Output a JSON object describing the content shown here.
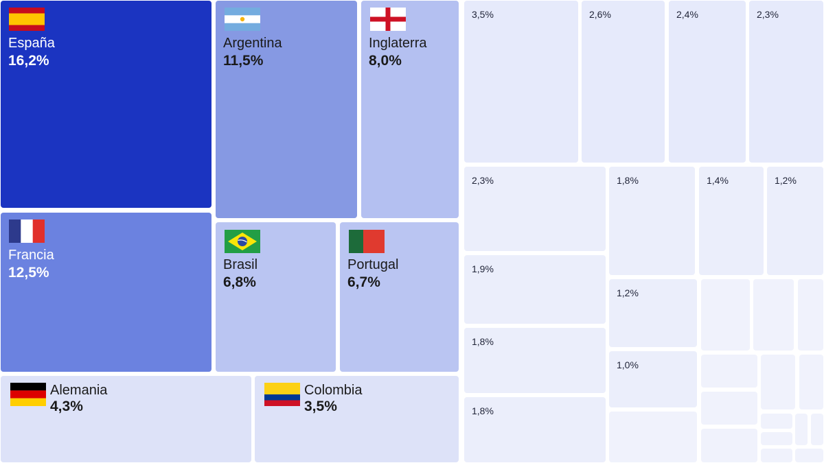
{
  "chart_data": {
    "type": "treemap",
    "series_unit": "%",
    "colors": {
      "level1": "#1b34c1",
      "level2": "#6b82e0",
      "level3": "#8699e3",
      "level4": "#b4c0f1",
      "level5": "#bac5f2",
      "level6": "#dde2f8",
      "small_a": "#e6eafb",
      "small_b": "#ebeefb",
      "small_c": "#f0f2fc"
    },
    "items": [
      {
        "label": "España",
        "value": 16.2,
        "display": "16,2%",
        "flag": "spain-flag"
      },
      {
        "label": "Francia",
        "value": 12.5,
        "display": "12,5%",
        "flag": "france-flag"
      },
      {
        "label": "Argentina",
        "value": 11.5,
        "display": "11,5%",
        "flag": "argentina-flag"
      },
      {
        "label": "Inglaterra",
        "value": 8.0,
        "display": "8,0%",
        "flag": "england-flag"
      },
      {
        "label": "Brasil",
        "value": 6.8,
        "display": "6,8%",
        "flag": "brazil-flag"
      },
      {
        "label": "Portugal",
        "value": 6.7,
        "display": "6,7%",
        "flag": "portugal-flag"
      },
      {
        "label": "Alemania",
        "value": 4.3,
        "display": "4,3%",
        "flag": "germany-flag"
      },
      {
        "label": "Colombia",
        "value": 3.5,
        "display": "3,5%",
        "flag": "colombia-flag"
      },
      {
        "label": "",
        "value": 3.5,
        "display": "3,5%"
      },
      {
        "label": "",
        "value": 2.6,
        "display": "2,6%"
      },
      {
        "label": "",
        "value": 2.4,
        "display": "2,4%"
      },
      {
        "label": "",
        "value": 2.3,
        "display": "2,3%"
      },
      {
        "label": "",
        "value": 2.3,
        "display": "2,3%"
      },
      {
        "label": "",
        "value": 1.9,
        "display": "1,9%"
      },
      {
        "label": "",
        "value": 1.8,
        "display": "1,8%"
      },
      {
        "label": "",
        "value": 1.8,
        "display": "1,8%"
      },
      {
        "label": "",
        "value": 1.8,
        "display": "1,8%"
      },
      {
        "label": "",
        "value": 1.4,
        "display": "1,4%"
      },
      {
        "label": "",
        "value": 1.2,
        "display": "1,2%"
      },
      {
        "label": "",
        "value": 1.2,
        "display": "1,2%"
      },
      {
        "label": "",
        "value": 1.0,
        "display": "1,0%"
      }
    ]
  }
}
